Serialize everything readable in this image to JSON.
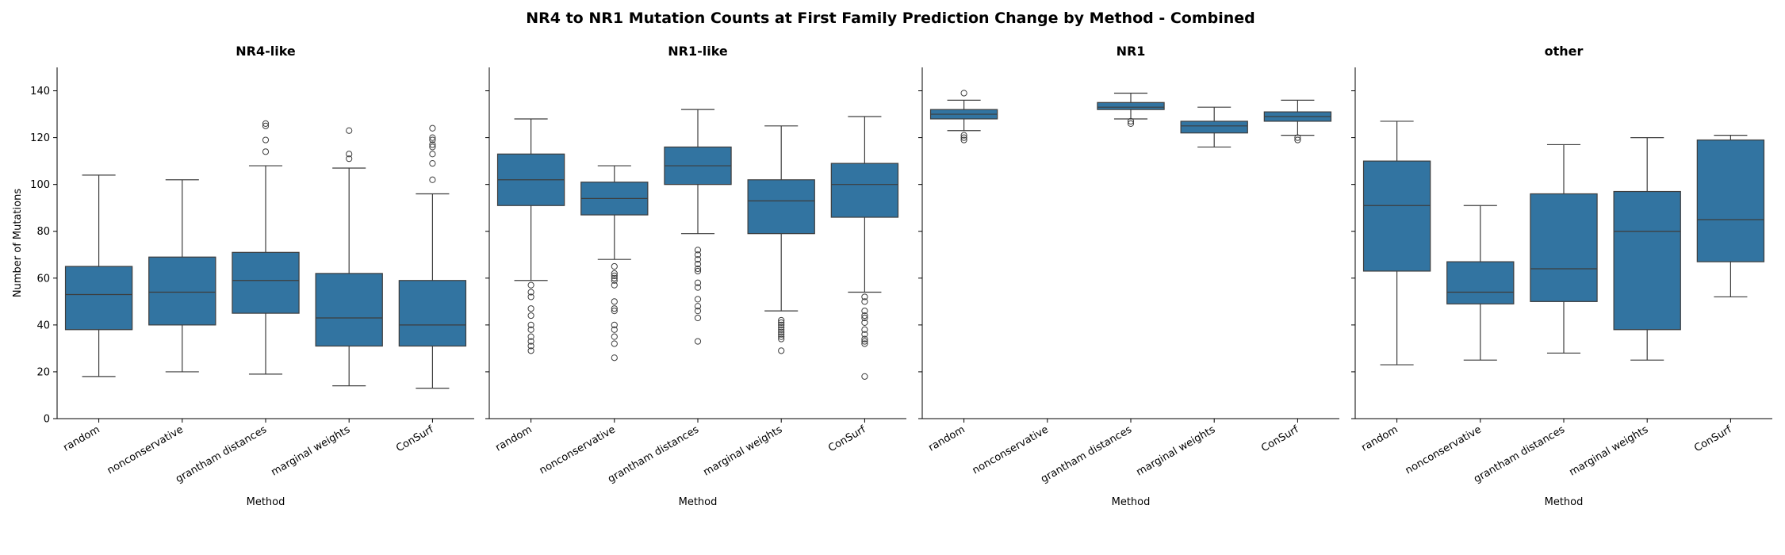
{
  "figure": {
    "title": "NR4 to NR1 Mutation Counts at First Family Prediction Change by Method - Combined",
    "box_color": "#3274a1",
    "line_color": "#3d3d3d"
  },
  "chart_data": {
    "type": "box",
    "title": "NR4 to NR1 Mutation Counts at First Family Prediction Change by Method - Combined",
    "ylabel": "Number of Mutations",
    "xlabel": "Method",
    "ylim": [
      0,
      150
    ],
    "yticks": [
      0,
      20,
      40,
      60,
      80,
      100,
      120,
      140
    ],
    "sharey": true,
    "grid": false,
    "categories": [
      "random",
      "nonconservative",
      "grantham distances",
      "marginal weights",
      "ConSurf"
    ],
    "panels": [
      {
        "title": "NR4-like",
        "boxes": [
          {
            "category": "random",
            "whisker_low": 18,
            "q1": 38,
            "median": 53,
            "q3": 65,
            "whisker_high": 104,
            "outliers": []
          },
          {
            "category": "nonconservative",
            "whisker_low": 20,
            "q1": 40,
            "median": 54,
            "q3": 69,
            "whisker_high": 102,
            "outliers": []
          },
          {
            "category": "grantham distances",
            "whisker_low": 19,
            "q1": 45,
            "median": 59,
            "q3": 71,
            "whisker_high": 108,
            "outliers": [
              114,
              119,
              125,
              126
            ]
          },
          {
            "category": "marginal weights",
            "whisker_low": 14,
            "q1": 31,
            "median": 43,
            "q3": 62,
            "whisker_high": 107,
            "outliers": [
              111,
              113,
              123
            ]
          },
          {
            "category": "ConSurf",
            "whisker_low": 13,
            "q1": 31,
            "median": 40,
            "q3": 59,
            "whisker_high": 96,
            "outliers": [
              102,
              109,
              113,
              116,
              117,
              119,
              120,
              124
            ]
          }
        ]
      },
      {
        "title": "NR1-like",
        "boxes": [
          {
            "category": "random",
            "whisker_low": 59,
            "q1": 91,
            "median": 102,
            "q3": 113,
            "whisker_high": 128,
            "outliers": [
              29,
              31,
              33,
              35,
              38,
              40,
              44,
              47,
              52,
              54,
              57
            ]
          },
          {
            "category": "nonconservative",
            "whisker_low": 68,
            "q1": 87,
            "median": 94,
            "q3": 101,
            "whisker_high": 108,
            "outliers": [
              26,
              32,
              35,
              38,
              40,
              46,
              47,
              50,
              57,
              59,
              60,
              61,
              62,
              65
            ]
          },
          {
            "category": "grantham distances",
            "whisker_low": 79,
            "q1": 100,
            "median": 108,
            "q3": 116,
            "whisker_high": 132,
            "outliers": [
              33,
              43,
              46,
              48,
              51,
              56,
              58,
              63,
              64,
              66,
              68,
              70,
              72
            ]
          },
          {
            "category": "marginal weights",
            "whisker_low": 46,
            "q1": 79,
            "median": 93,
            "q3": 102,
            "whisker_high": 125,
            "outliers": [
              29,
              34,
              35,
              36,
              37,
              38,
              39,
              40,
              41,
              42
            ]
          },
          {
            "category": "ConSurf",
            "whisker_low": 54,
            "q1": 86,
            "median": 100,
            "q3": 109,
            "whisker_high": 129,
            "outliers": [
              18,
              32,
              33,
              34,
              36,
              38,
              41,
              43,
              44,
              46,
              50,
              52
            ]
          }
        ]
      },
      {
        "title": "NR1",
        "boxes": [
          {
            "category": "random",
            "whisker_low": 123,
            "q1": 128,
            "median": 130,
            "q3": 132,
            "whisker_high": 136,
            "outliers": [
              119,
              120,
              121,
              139
            ]
          },
          {
            "category": "nonconservative",
            "empty": true
          },
          {
            "category": "grantham distances",
            "whisker_low": 128,
            "q1": 132,
            "median": 133,
            "q3": 135,
            "whisker_high": 139,
            "outliers": [
              126,
              127
            ]
          },
          {
            "category": "marginal weights",
            "whisker_low": 116,
            "q1": 122,
            "median": 125,
            "q3": 127,
            "whisker_high": 133,
            "outliers": []
          },
          {
            "category": "ConSurf",
            "whisker_low": 121,
            "q1": 127,
            "median": 129,
            "q3": 131,
            "whisker_high": 136,
            "outliers": [
              119,
              120
            ]
          }
        ]
      },
      {
        "title": "other",
        "boxes": [
          {
            "category": "random",
            "whisker_low": 23,
            "q1": 63,
            "median": 91,
            "q3": 110,
            "whisker_high": 127,
            "outliers": []
          },
          {
            "category": "nonconservative",
            "whisker_low": 25,
            "q1": 49,
            "median": 54,
            "q3": 67,
            "whisker_high": 91,
            "outliers": []
          },
          {
            "category": "grantham distances",
            "whisker_low": 28,
            "q1": 50,
            "median": 64,
            "q3": 96,
            "whisker_high": 117,
            "outliers": []
          },
          {
            "category": "marginal weights",
            "whisker_low": 25,
            "q1": 38,
            "median": 80,
            "q3": 97,
            "whisker_high": 120,
            "outliers": []
          },
          {
            "category": "ConSurf",
            "whisker_low": 52,
            "q1": 67,
            "median": 85,
            "q3": 119,
            "whisker_high": 121,
            "outliers": []
          }
        ]
      }
    ]
  }
}
